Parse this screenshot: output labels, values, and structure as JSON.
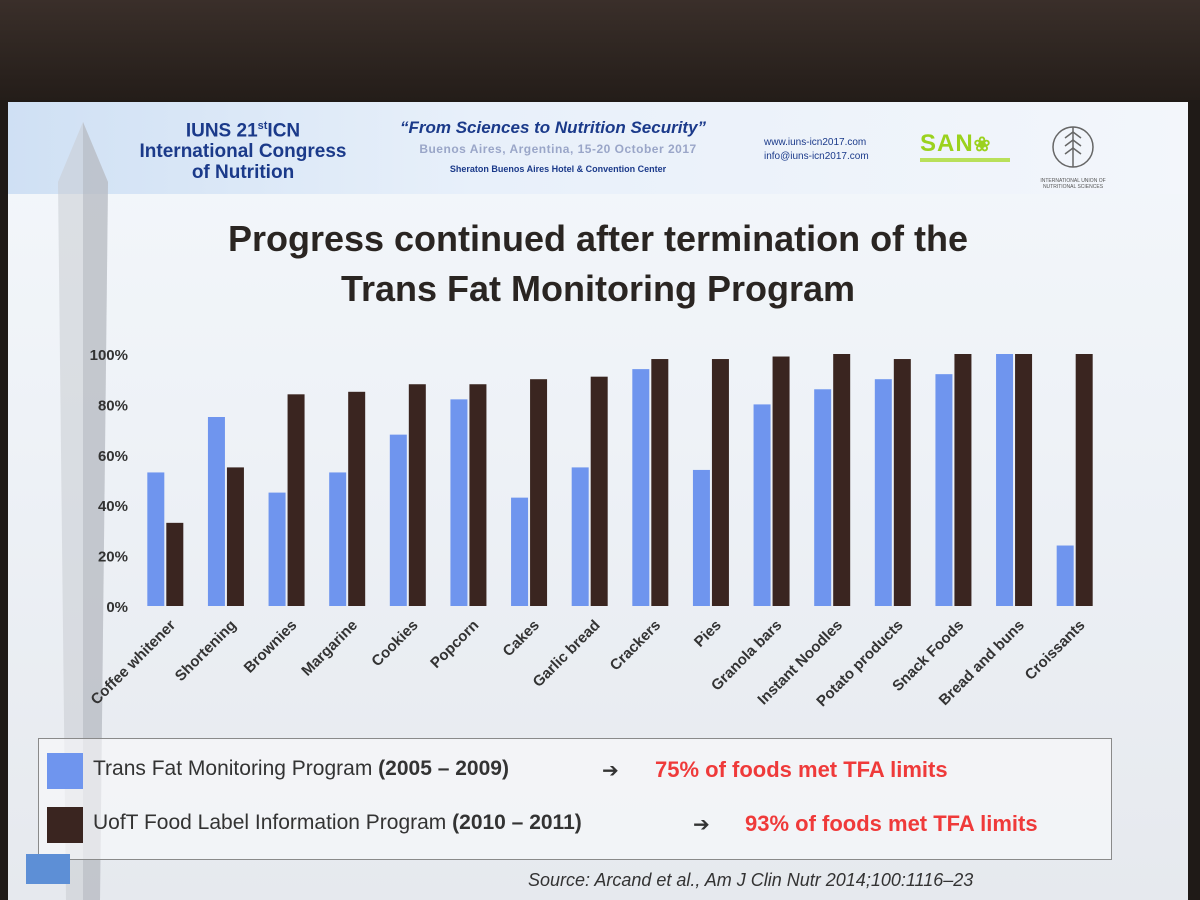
{
  "conference": {
    "name_line1": "IUNS 21",
    "name_sup": "st",
    "name_line1_end": "ICN",
    "name_line2": "International Congress",
    "name_line3": "of Nutrition",
    "tagline": "“From Sciences to Nutrition Security”",
    "city": "Buenos Aires, Argentina, 15-20 October 2017",
    "venue": "Sheraton Buenos Aires Hotel & Convention Center",
    "website": "www.iuns-icn2017.com",
    "email": "info@iuns-icn2017.com",
    "sano_logo": "SAN",
    "iuns_logo_text": "INTERNATIONAL UNION OF NUTRITIONAL SCIENCES"
  },
  "colors": {
    "series1": "#6f95ee",
    "series2": "#3a2520",
    "result_red": "#ef3a3a"
  },
  "chart_data": {
    "type": "bar",
    "title_line1": "Progress continued after termination of the",
    "title_line2": "Trans Fat Monitoring Program",
    "categories": [
      "Coffee whitener",
      "Shortening",
      "Brownies",
      "Margarine",
      "Cookies",
      "Popcorn",
      "Cakes",
      "Garlic bread",
      "Crackers",
      "Pies",
      "Granola bars",
      "Instant Noodles",
      "Potato products",
      "Snack Foods",
      "Bread and buns",
      "Croissants"
    ],
    "series": [
      {
        "name": "Trans Fat Monitoring Program (2005 – 2009)",
        "values": [
          53,
          75,
          45,
          53,
          68,
          82,
          43,
          55,
          94,
          54,
          80,
          86,
          90,
          92,
          100,
          24
        ]
      },
      {
        "name": "UofT Food Label Information Program (2010 – 2011)",
        "values": [
          33,
          55,
          84,
          85,
          88,
          88,
          90,
          91,
          98,
          98,
          99,
          100,
          98,
          100,
          100,
          100
        ]
      }
    ],
    "y_ticks": [
      "0%",
      "20%",
      "40%",
      "60%",
      "80%",
      "100%"
    ],
    "ylim": [
      0,
      100
    ],
    "grid": false
  },
  "legend": {
    "item1_label": "Trans Fat Monitoring Program",
    "item1_years": "(2005 – 2009)",
    "item1_arrow": "➔",
    "item1_result": "75% of foods met TFA limits",
    "item2_label": "UofT Food Label Information Program",
    "item2_years": "(2010 – 2011)",
    "item2_arrow": "➔",
    "item2_result": "93% of foods met TFA limits"
  },
  "source": "Source: Arcand et al., Am J Clin Nutr 2014;100:1116–23"
}
